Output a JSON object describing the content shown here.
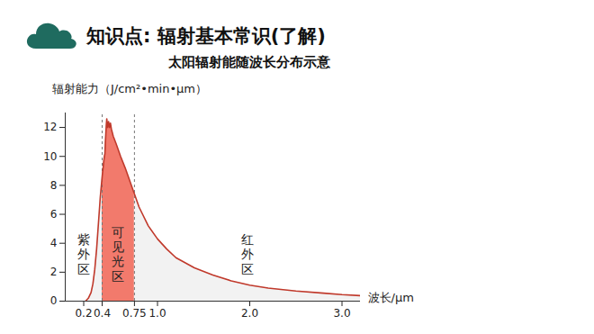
{
  "header": {
    "title": "知识点: 辐射基本常识(了解)"
  },
  "chart_data": {
    "type": "area",
    "title": "太阳辐射能随波长分布示意",
    "x_label": "波长/μm",
    "y_label": "辐射能力（J/cm²•min•μm）",
    "x": [
      0.22,
      0.25,
      0.28,
      0.3,
      0.32,
      0.34,
      0.36,
      0.38,
      0.4,
      0.42,
      0.43,
      0.44,
      0.45,
      0.46,
      0.47,
      0.48,
      0.49,
      0.5,
      0.52,
      0.55,
      0.6,
      0.65,
      0.7,
      0.75,
      0.8,
      0.9,
      1.0,
      1.1,
      1.2,
      1.4,
      1.6,
      1.8,
      2.0,
      2.2,
      2.5,
      2.8,
      3.0,
      3.2
    ],
    "values": [
      0,
      0.2,
      0.6,
      1.2,
      2.2,
      3.6,
      5.4,
      7.2,
      8.6,
      9.8,
      10.2,
      11.6,
      12.6,
      12.0,
      12.4,
      12.0,
      12.3,
      11.9,
      11.4,
      10.9,
      10.0,
      9.2,
      8.3,
      7.4,
      6.5,
      5.2,
      4.3,
      3.6,
      3.0,
      2.3,
      1.8,
      1.4,
      1.1,
      0.9,
      0.7,
      0.55,
      0.45,
      0.38
    ],
    "color": "#c0392b",
    "regions": [
      {
        "name": "紫外区",
        "from": 0,
        "to": 0.4,
        "color": "#f2f2f2"
      },
      {
        "name": "可见光区",
        "from": 0.4,
        "to": 0.75,
        "color": "#f27a6c"
      },
      {
        "name": "红外区",
        "from": 0.75,
        "to": 3.2,
        "color": "#f2f2f2"
      }
    ],
    "xlim": [
      0,
      3.2
    ],
    "ylim": [
      0,
      13
    ],
    "xticks": [
      0.2,
      0.4,
      0.75,
      {
        "value": 1,
        "label": "1.0"
      },
      {
        "value": 2,
        "label": "2.0"
      },
      {
        "value": 3,
        "label": "3.0"
      }
    ],
    "yticks": [
      0,
      2,
      4,
      6,
      8,
      10,
      12
    ],
    "grid": false
  }
}
